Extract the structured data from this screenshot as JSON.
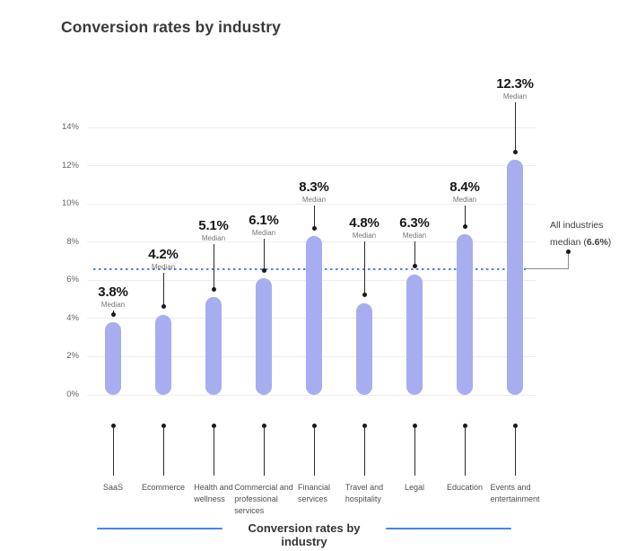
{
  "title": "Conversion rates by industry",
  "chart_data": {
    "type": "bar",
    "title": "Conversion rates by industry",
    "xlabel": "",
    "ylabel": "",
    "ylim": [
      0,
      14
    ],
    "y_tick_values": [
      0,
      2,
      4,
      6,
      8,
      10,
      12,
      14
    ],
    "y_tick_labels": [
      "0%",
      "2%",
      "4%",
      "6%",
      "8%",
      "10%",
      "12%",
      "14%"
    ],
    "grid": "horizontal",
    "legend_position": "bottom",
    "categories": [
      "SaaS",
      "Ecommerce",
      "Health and wellness",
      "Commercial and professional services",
      "Financial services",
      "Travel and hospitality",
      "Legal",
      "Education",
      "Events and entertainment"
    ],
    "category_lines": [
      [
        "SaaS"
      ],
      [
        "Ecommerce"
      ],
      [
        "Health and",
        "wellness"
      ],
      [
        "Commercial and",
        "professional",
        "services"
      ],
      [
        "Financial",
        "services"
      ],
      [
        "Travel and",
        "hospitality"
      ],
      [
        "Legal"
      ],
      [
        "Education"
      ],
      [
        "Events and",
        "entertainment"
      ]
    ],
    "values": [
      3.8,
      4.2,
      5.1,
      6.1,
      8.3,
      4.8,
      6.3,
      8.4,
      12.3
    ],
    "value_labels": [
      "3.8%",
      "4.2%",
      "5.1%",
      "6.1%",
      "8.3%",
      "4.8%",
      "6.3%",
      "8.4%",
      "12.3%"
    ],
    "value_sublabel": "Median",
    "all_industries_median": 6.6,
    "annotation": {
      "line1": "All industries",
      "line2_prefix": "median (",
      "line2_value": "6.6%",
      "line2_suffix": ")"
    },
    "legend_label": "Conversion rates by industry",
    "colors": {
      "bar": "#a6aeef",
      "median_line": "#4285f4",
      "legend_line": "#4285f4",
      "gridline": "#ededed",
      "leader": "#2b2b2b",
      "dot": "#1a1a1a",
      "value_text": "#161616",
      "sublabel_text": "#757575",
      "axis_text": "#5f6368",
      "category_text": "#4f4f4f"
    }
  }
}
